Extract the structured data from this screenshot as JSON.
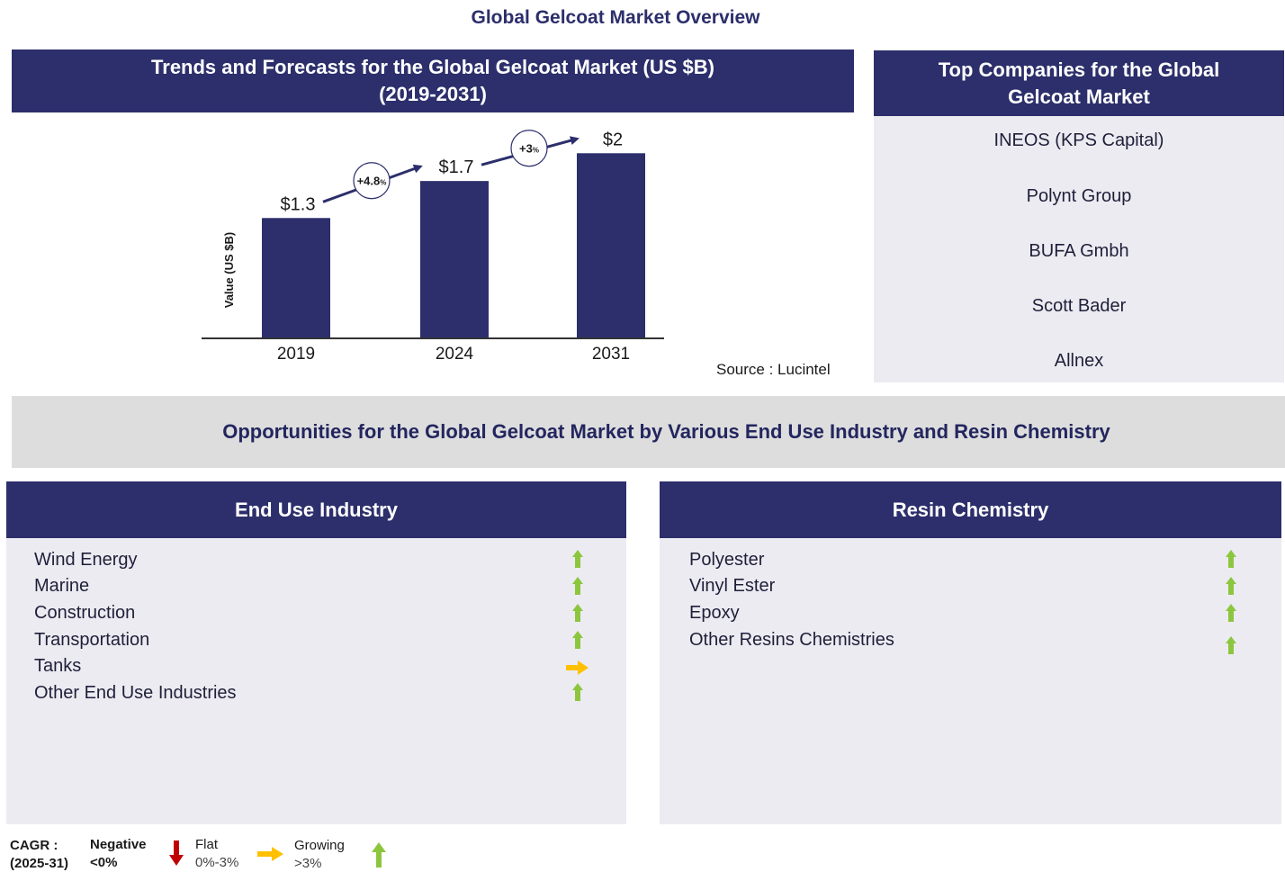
{
  "page_title": "Global Gelcoat Market Overview",
  "trend_panel": {
    "title_line1": "Trends and Forecasts for the Global Gelcoat Market (US $B)",
    "title_line2": "(2019-2031)",
    "source": "Source : Lucintel"
  },
  "chart_data": {
    "type": "bar",
    "categories": [
      "2019",
      "2024",
      "2031"
    ],
    "values": [
      1.3,
      1.7,
      2
    ],
    "data_labels": [
      "$1.3",
      "$1.7",
      "$2"
    ],
    "ylabel": "Value (US $B)",
    "growth_labels": [
      {
        "value": "+4.8",
        "unit": "%"
      },
      {
        "value": "+3",
        "unit": "%"
      }
    ],
    "bar_color": "#2c2f6b",
    "ylim": [
      0,
      2.1
    ]
  },
  "companies": {
    "title_line1": "Top Companies for the Global",
    "title_line2": "Gelcoat Market",
    "items": [
      "INEOS (KPS Capital)",
      "Polynt Group",
      "BUFA Gmbh",
      "Scott Bader",
      "Allnex"
    ]
  },
  "opportunities": {
    "title": "Opportunities for the Global Gelcoat Market by Various End Use Industry and Resin Chemistry"
  },
  "end_use": {
    "title": "End Use Industry",
    "items": [
      {
        "label": "Wind Energy",
        "trend": "growing"
      },
      {
        "label": "Marine",
        "trend": "growing"
      },
      {
        "label": "Construction",
        "trend": "growing"
      },
      {
        "label": "Transportation",
        "trend": "growing"
      },
      {
        "label": "Tanks",
        "trend": "flat"
      },
      {
        "label": "Other End Use Industries",
        "trend": "growing"
      }
    ]
  },
  "resin": {
    "title": "Resin Chemistry",
    "items": [
      {
        "label": "Polyester",
        "trend": "growing"
      },
      {
        "label": "Vinyl Ester",
        "trend": "growing"
      },
      {
        "label": "Epoxy",
        "trend": "growing"
      },
      {
        "label": "Other Resins Chemistries",
        "trend": "growing"
      }
    ]
  },
  "legend": {
    "cagr_label": "CAGR  :",
    "cagr_period": "(2025-31)",
    "negative_label": "Negative",
    "negative_range": "<0%",
    "flat_label": "Flat",
    "flat_range": "0%-3%",
    "growing_label": "Growing",
    "growing_range": ">3%"
  },
  "colors": {
    "navy": "#2c2f6b",
    "growing": "#8cc63f",
    "flat": "#ffc000",
    "negative": "#c00000",
    "panel": "#ecebf1",
    "band": "#dddddd"
  }
}
